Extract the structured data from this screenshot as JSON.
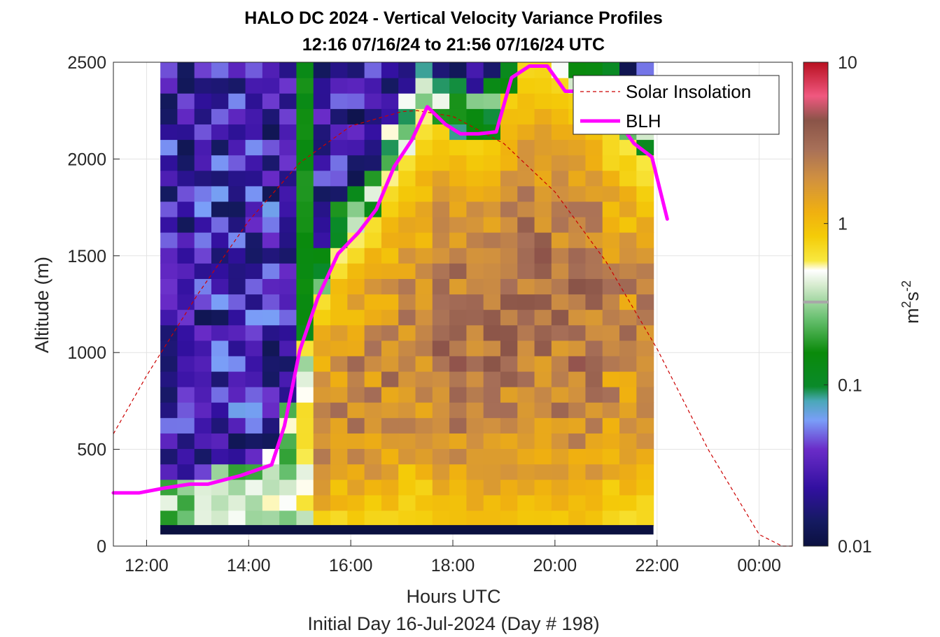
{
  "chart_data": {
    "type": "heatmap",
    "title": "HALO DC 2024 - Vertical Velocity Variance Profiles",
    "subtitle": "12:16 07/16/24 to 21:56 07/16/24  UTC",
    "xlabel": "Hours UTC",
    "xlabel2": "Initial Day 16-Jul-2024 (Day # 198)",
    "ylabel": "Altitude (m)",
    "xlim": [
      11.35,
      24.65
    ],
    "ylim": [
      0,
      2500
    ],
    "x_tick_values": [
      12,
      14,
      16,
      18,
      20,
      22,
      24
    ],
    "x_tick_labels": [
      "12:00",
      "14:00",
      "16:00",
      "18:00",
      "20:00",
      "22:00",
      "00:00"
    ],
    "y_tick_values": [
      0,
      500,
      1000,
      1500,
      2000,
      2500
    ],
    "y_tick_labels": [
      "0",
      "500",
      "1000",
      "1500",
      "2000",
      "2500"
    ],
    "grid": true,
    "colorbar": {
      "scale": "log",
      "range": [
        0.01,
        10
      ],
      "tick_values": [
        0.01,
        0.1,
        1,
        10
      ],
      "tick_labels": [
        "0.01",
        "0.1",
        "1",
        "10"
      ],
      "label": "m",
      "label_sup1": "2",
      "label_mid": "s",
      "label_sup2": "-2"
    },
    "heatmap": {
      "x_start_hour": 12.27,
      "x_end_hour": 21.93,
      "columns": 29,
      "y_start_m": 105,
      "y_end_m": 2500,
      "rows": 30,
      "description_value": "estimated vertical velocity variance, m2 s-2"
    },
    "series": [
      {
        "name": "Solar Insolation",
        "style": "dashed",
        "color": "#cc0000",
        "x": [
          11.35,
          12.0,
          13.0,
          14.0,
          15.0,
          16.0,
          17.0,
          17.3,
          18.0,
          19.0,
          20.0,
          21.0,
          22.0,
          23.0,
          24.0,
          24.45,
          24.65
        ],
        "y": [
          580,
          880,
          1300,
          1680,
          1980,
          2170,
          2245,
          2250,
          2220,
          2080,
          1830,
          1470,
          1020,
          500,
          60,
          0,
          0
        ]
      },
      {
        "name": "BLH",
        "style": "solid",
        "color": "#ff00ff",
        "x": [
          11.35,
          11.85,
          12.35,
          12.85,
          13.2,
          13.85,
          14.45,
          14.7,
          15.0,
          15.35,
          15.75,
          16.15,
          16.5,
          16.85,
          17.2,
          17.5,
          17.85,
          18.15,
          18.5,
          18.85,
          19.15,
          19.5,
          19.85,
          20.2,
          20.5,
          20.85,
          21.2,
          21.55,
          21.9,
          22.2
        ],
        "y": [
          275,
          275,
          300,
          320,
          320,
          365,
          420,
          620,
          1010,
          1280,
          1510,
          1620,
          1740,
          1960,
          2100,
          2270,
          2180,
          2130,
          2130,
          2140,
          2420,
          2480,
          2480,
          2350,
          2350,
          2310,
          2210,
          2080,
          2010,
          1690
        ]
      }
    ],
    "legend": {
      "position": "top-right",
      "entries": [
        "Solar Insolation",
        "BLH"
      ]
    },
    "colors": {
      "blh": "#ff00ff",
      "solar": "#cc0000",
      "grid": "#e3e3e3",
      "axis": "#262626"
    }
  }
}
